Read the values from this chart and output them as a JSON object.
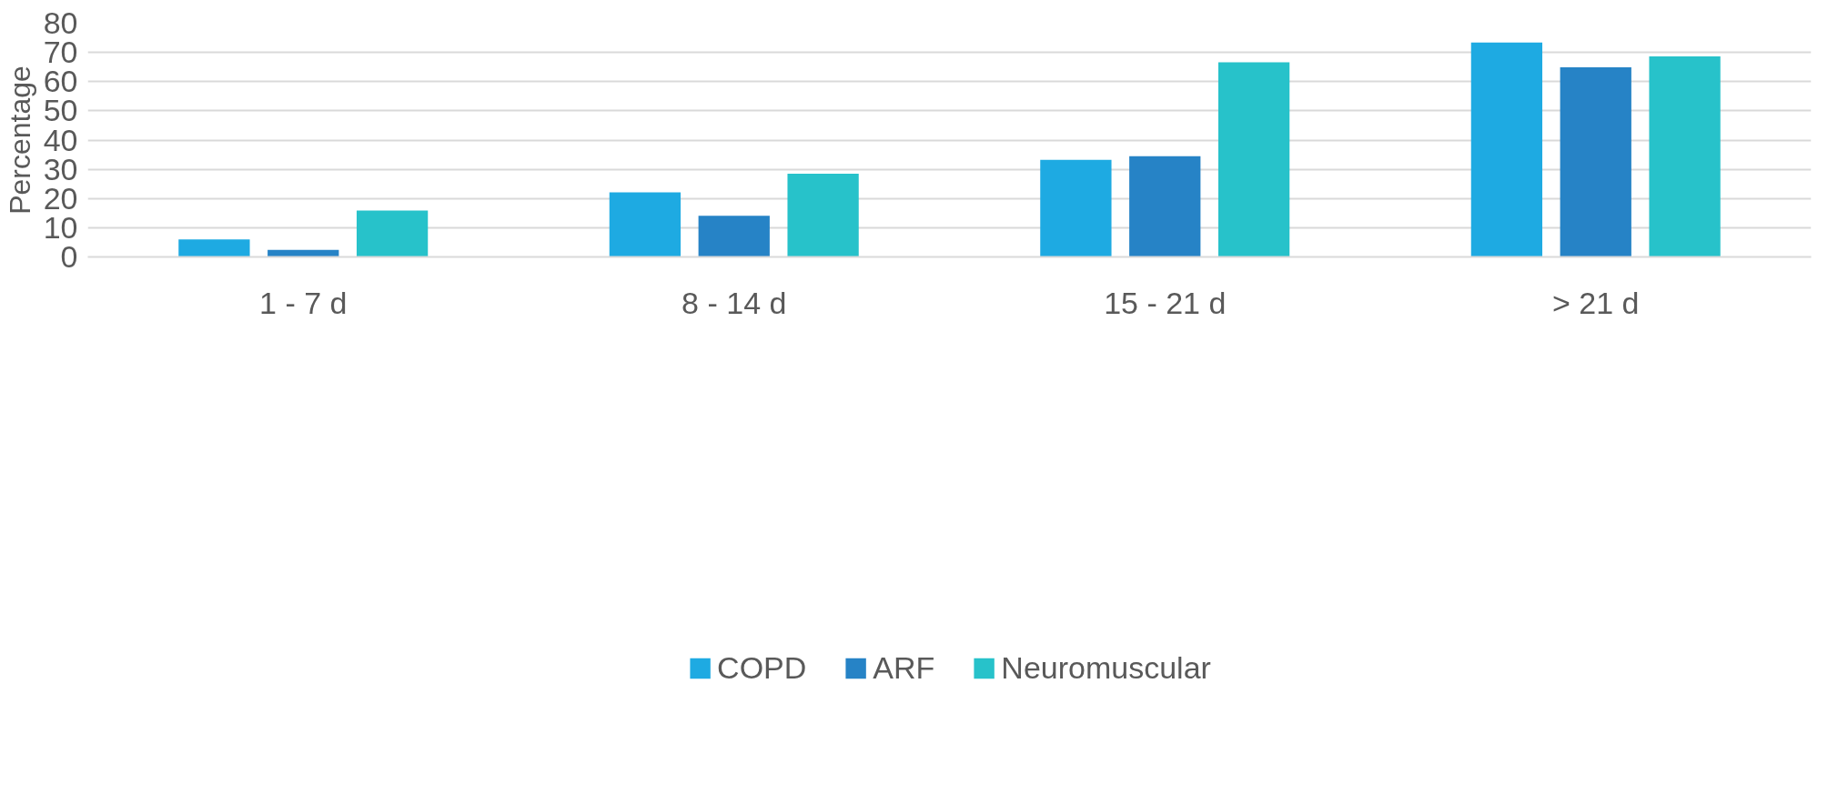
{
  "chart_data": {
    "type": "bar",
    "ylabel": "Percentage",
    "categories": [
      "1 - 7 d",
      "8 - 14 d",
      "15 - 21 d",
      "> 21 d"
    ],
    "series": [
      {
        "name": "COPD",
        "color": "#1eaae2",
        "values": [
          6.0,
          22.1,
          33.2,
          73.4
        ]
      },
      {
        "name": "ARF",
        "color": "#2683c6",
        "values": [
          2.4,
          14.1,
          34.5,
          64.9
        ]
      },
      {
        "name": "Neuromuscular",
        "color": "#27c2ca",
        "values": [
          15.9,
          28.5,
          66.6,
          68.6
        ]
      }
    ],
    "ylim": [
      0,
      80
    ],
    "yticks": [
      0,
      10,
      20,
      30,
      40,
      50,
      60,
      70,
      80
    ],
    "grid": "y",
    "legend": "bottom"
  }
}
